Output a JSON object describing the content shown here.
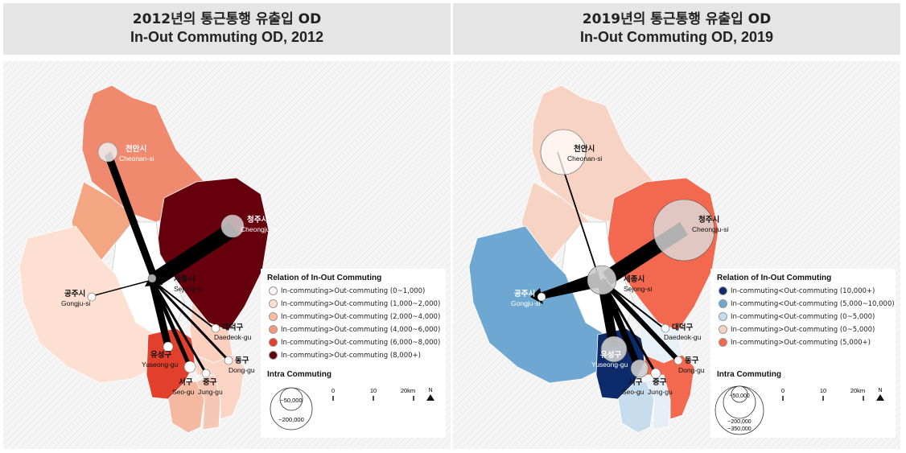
{
  "panels": [
    {
      "title_ko": "2012년의 통근통행 유출입 OD",
      "title_en": "In-Out Commuting OD, 2012",
      "fill": {
        "cheonan": "#f4a582",
        "cheongju": "#67000d",
        "sejong": "#ffffff",
        "gongju": "#fde0d2",
        "daedeok": "#fbcfbd",
        "yuseong": "#e23f2c",
        "seogu": "#f5b8a0",
        "junggu": "#f5c7b4",
        "donggu": "#fad5c5",
        "north": "#f08a6e"
      },
      "places": {
        "cheonan": {
          "ko": "천안시",
          "en": "Cheonan-si"
        },
        "cheongju": {
          "ko": "청주시",
          "en": "Cheongju-si"
        },
        "sejong": {
          "ko": "세종시",
          "en": "Sejong-si"
        },
        "gongju": {
          "ko": "공주시",
          "en": "Gongju-si"
        },
        "daedeok": {
          "ko": "대덕구",
          "en": "Daedeok-gu"
        },
        "yuseong": {
          "ko": "유성구",
          "en": "Yuseong-gu"
        },
        "seogu": {
          "ko": "서구",
          "en": "Seo-gu"
        },
        "junggu": {
          "ko": "중구",
          "en": "Jung-gu"
        },
        "donggu": {
          "ko": "동구",
          "en": "Dong-gu"
        }
      },
      "legend": {
        "title": "Relation of In-Out Commuting",
        "items": [
          {
            "label": "In-commuting>Out-commuting  (0~1,000)",
            "color": "#fff5f0"
          },
          {
            "label": "In-commuting>Out-commuting  (1,000~2,000)",
            "color": "#fde0d2"
          },
          {
            "label": "In-commuting>Out-commuting  (2,000~4,000)",
            "color": "#fcbba1"
          },
          {
            "label": "In-commuting>Out-commuting  (4,000~6,000)",
            "color": "#f4967a"
          },
          {
            "label": "In-commuting>Out-commuting  (6,000~8,000)",
            "color": "#e23f2c"
          },
          {
            "label": "In-commuting>Out-commuting  (8,000+)",
            "color": "#67000d"
          }
        ],
        "intra_title": "Intra Commuting",
        "circle_labels": [
          "~50,000",
          "~200,000"
        ],
        "scale_labels": [
          "0",
          "10",
          "20km"
        ],
        "north": "N"
      }
    },
    {
      "title_ko": "2019년의 통근통행 유출입 OD",
      "title_en": "In-Out Commuting OD, 2019",
      "fill": {
        "cheonan": "#f7d3c4",
        "cheongju": "#f2694f",
        "sejong": "#ffffff",
        "gongju": "#6ea8d2",
        "daedeok": "#e9f1f8",
        "yuseong": "#0d2a6b",
        "seogu": "#c7dcec",
        "junggu": "#e6eff7",
        "donggu": "#f2694f",
        "north": "#f7d3c4"
      },
      "places": {
        "cheonan": {
          "ko": "천안시",
          "en": "Cheonan-si"
        },
        "cheongju": {
          "ko": "청주시",
          "en": "Cheongju-si"
        },
        "sejong": {
          "ko": "세종시",
          "en": "Sejong-si"
        },
        "gongju": {
          "ko": "공주시",
          "en": "Gongju-si"
        },
        "daedeok": {
          "ko": "대덕구",
          "en": "Daedeok-gu"
        },
        "yuseong": {
          "ko": "유성구",
          "en": "Yuseong-gu"
        },
        "seogu": {
          "ko": "서구",
          "en": "Seo-gu"
        },
        "junggu": {
          "ko": "중구",
          "en": "Jung-gu"
        },
        "donggu": {
          "ko": "동구",
          "en": "Dong-gu"
        }
      },
      "legend": {
        "title": "Relation of In-Out Commuting",
        "items": [
          {
            "label": "In-commuting<Out-commuting  (10,000+)",
            "color": "#0d2a6b"
          },
          {
            "label": "In-commuting<Out-commuting  (5,000~10,000)",
            "color": "#6ea8d2"
          },
          {
            "label": "In-commuting<Out-commuting  (0~5,000)",
            "color": "#c7dcec"
          },
          {
            "label": "In-commuting>Out-commuting  (0~5,000)",
            "color": "#f7d3c4"
          },
          {
            "label": "In-commuting>Out-commuting  (5,000+)",
            "color": "#f2694f"
          }
        ],
        "intra_title": "Intra Commuting",
        "circle_labels": [
          "~50,000",
          "~200,000",
          "~350,000"
        ],
        "scale_labels": [
          "0",
          "10",
          "20km"
        ],
        "north": "N"
      }
    }
  ]
}
